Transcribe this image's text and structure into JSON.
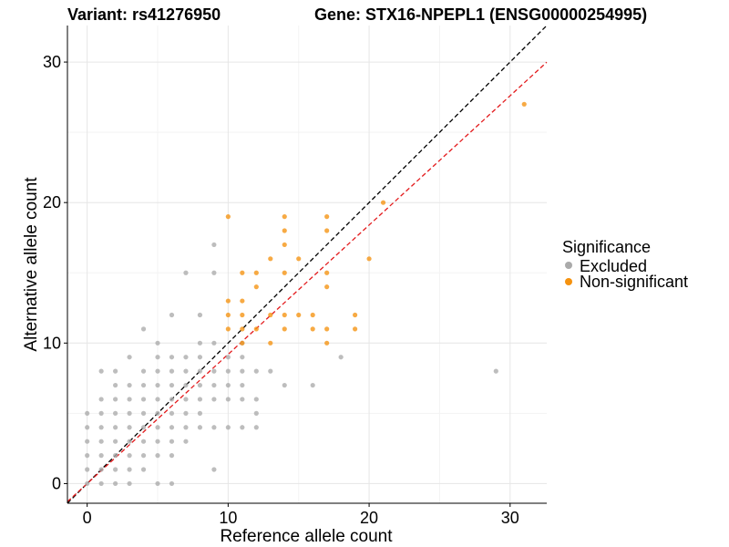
{
  "chart_data": {
    "type": "scatter",
    "title_left": "Variant: rs41276950",
    "title_right": "Gene: STX16-NPEPL1 (ENSG00000254995)",
    "xlabel": "Reference allele count",
    "ylabel": "Alternative allele count",
    "xlim": [
      -1.4,
      32.6
    ],
    "ylim": [
      -1.4,
      32.6
    ],
    "xticks": [
      0,
      10,
      20,
      30
    ],
    "yticks": [
      0,
      10,
      20,
      30
    ],
    "xtick_labels": [
      "0",
      "10",
      "20",
      "30"
    ],
    "ytick_labels": [
      "0",
      "10",
      "20",
      "30"
    ],
    "legend": {
      "title": "Significance",
      "entries": [
        {
          "label": "Excluded",
          "color": "#aaaaaa"
        },
        {
          "label": "Non-significant",
          "color": "#f5920f"
        }
      ]
    },
    "reference_lines": [
      {
        "name": "identity",
        "slope": 1,
        "intercept": 0,
        "color": "#000000",
        "dash": true
      },
      {
        "name": "fit",
        "slope": 0.92,
        "intercept": 0,
        "color": "#e31a1c",
        "dash": true
      }
    ],
    "series": [
      {
        "name": "Excluded",
        "color": "#aaaaaa",
        "points": [
          [
            0,
            0
          ],
          [
            0,
            1
          ],
          [
            0,
            2
          ],
          [
            0,
            3
          ],
          [
            0,
            4
          ],
          [
            0,
            5
          ],
          [
            1,
            0
          ],
          [
            1,
            1
          ],
          [
            1,
            2
          ],
          [
            1,
            3
          ],
          [
            1,
            4
          ],
          [
            1,
            5
          ],
          [
            1,
            6
          ],
          [
            1,
            8
          ],
          [
            2,
            0
          ],
          [
            2,
            1
          ],
          [
            2,
            2
          ],
          [
            2,
            3
          ],
          [
            2,
            4
          ],
          [
            2,
            5
          ],
          [
            2,
            6
          ],
          [
            2,
            7
          ],
          [
            2,
            8
          ],
          [
            3,
            0
          ],
          [
            3,
            1
          ],
          [
            3,
            2
          ],
          [
            3,
            3
          ],
          [
            3,
            4
          ],
          [
            3,
            5
          ],
          [
            3,
            6
          ],
          [
            3,
            7
          ],
          [
            3,
            9
          ],
          [
            4,
            1
          ],
          [
            4,
            2
          ],
          [
            4,
            3
          ],
          [
            4,
            4
          ],
          [
            4,
            5
          ],
          [
            4,
            6
          ],
          [
            4,
            7
          ],
          [
            4,
            8
          ],
          [
            4,
            11
          ],
          [
            5,
            0
          ],
          [
            5,
            2
          ],
          [
            5,
            3
          ],
          [
            5,
            4
          ],
          [
            5,
            5
          ],
          [
            5,
            6
          ],
          [
            5,
            7
          ],
          [
            5,
            8
          ],
          [
            5,
            9
          ],
          [
            5,
            10
          ],
          [
            6,
            0
          ],
          [
            6,
            2
          ],
          [
            6,
            3
          ],
          [
            6,
            4
          ],
          [
            6,
            5
          ],
          [
            6,
            6
          ],
          [
            6,
            7
          ],
          [
            6,
            8
          ],
          [
            6,
            9
          ],
          [
            6,
            12
          ],
          [
            7,
            3
          ],
          [
            7,
            4
          ],
          [
            7,
            5
          ],
          [
            7,
            6
          ],
          [
            7,
            7
          ],
          [
            7,
            8
          ],
          [
            7,
            9
          ],
          [
            7,
            15
          ],
          [
            8,
            4
          ],
          [
            8,
            5
          ],
          [
            8,
            6
          ],
          [
            8,
            7
          ],
          [
            8,
            8
          ],
          [
            8,
            9
          ],
          [
            8,
            10
          ],
          [
            8,
            12
          ],
          [
            9,
            1
          ],
          [
            9,
            4
          ],
          [
            9,
            6
          ],
          [
            9,
            7
          ],
          [
            9,
            8
          ],
          [
            9,
            10
          ],
          [
            9,
            15
          ],
          [
            9,
            17
          ],
          [
            10,
            4
          ],
          [
            10,
            6
          ],
          [
            10,
            7
          ],
          [
            10,
            8
          ],
          [
            10,
            9
          ],
          [
            11,
            4
          ],
          [
            11,
            6
          ],
          [
            11,
            7
          ],
          [
            11,
            8
          ],
          [
            11,
            9
          ],
          [
            11,
            10
          ],
          [
            12,
            4
          ],
          [
            12,
            5
          ],
          [
            12,
            6
          ],
          [
            12,
            8
          ],
          [
            13,
            8
          ],
          [
            14,
            7
          ],
          [
            16,
            7
          ],
          [
            18,
            9
          ],
          [
            29,
            8
          ]
        ]
      },
      {
        "name": "Non-significant",
        "color": "#f5920f",
        "points": [
          [
            10,
            11
          ],
          [
            10,
            12
          ],
          [
            10,
            13
          ],
          [
            10,
            19
          ],
          [
            11,
            10
          ],
          [
            11,
            11
          ],
          [
            11,
            12
          ],
          [
            11,
            13
          ],
          [
            11,
            15
          ],
          [
            12,
            11
          ],
          [
            12,
            14
          ],
          [
            12,
            15
          ],
          [
            13,
            10
          ],
          [
            13,
            12
          ],
          [
            13,
            16
          ],
          [
            14,
            11
          ],
          [
            14,
            12
          ],
          [
            14,
            15
          ],
          [
            14,
            17
          ],
          [
            14,
            18
          ],
          [
            14,
            19
          ],
          [
            15,
            12
          ],
          [
            15,
            16
          ],
          [
            16,
            11
          ],
          [
            16,
            12
          ],
          [
            17,
            10
          ],
          [
            17,
            11
          ],
          [
            17,
            14
          ],
          [
            17,
            15
          ],
          [
            17,
            18
          ],
          [
            17,
            19
          ],
          [
            19,
            11
          ],
          [
            19,
            12
          ],
          [
            20,
            16
          ],
          [
            21,
            20
          ],
          [
            31,
            27
          ]
        ]
      }
    ]
  }
}
